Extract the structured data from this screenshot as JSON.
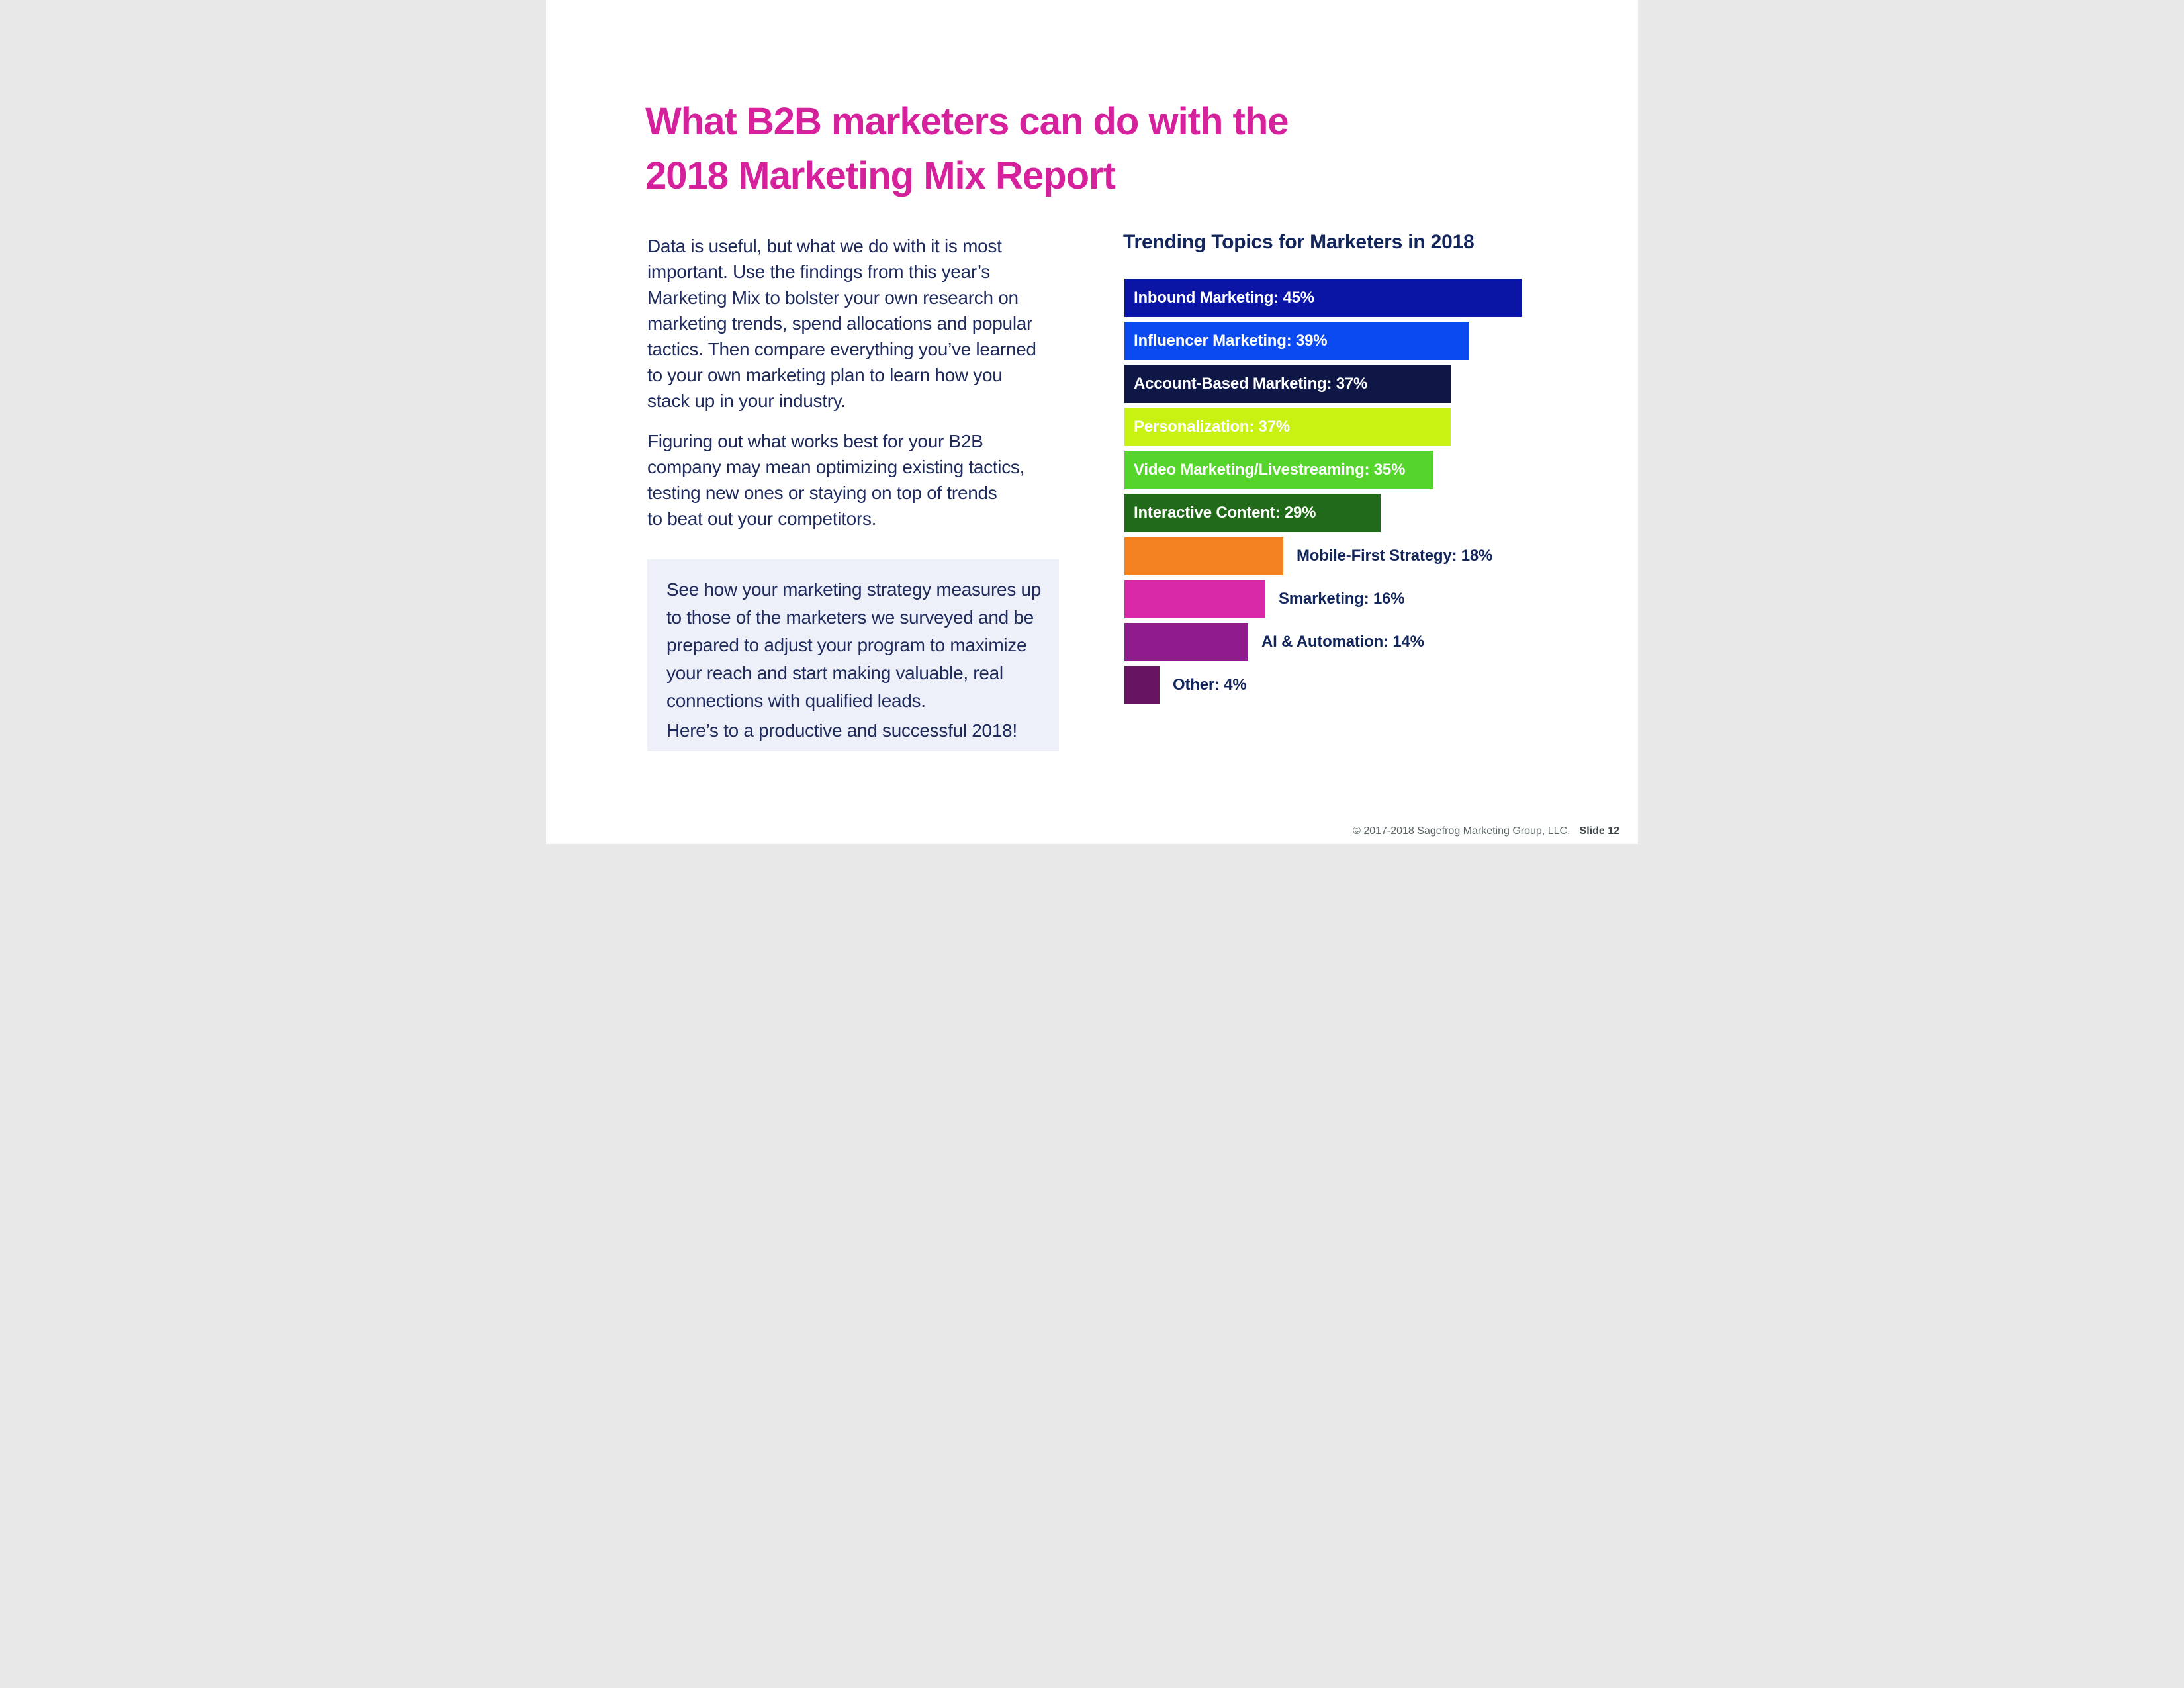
{
  "title": {
    "line1": "What B2B marketers can do with the",
    "line2": "2018 Marketing Mix Report",
    "color": "#d6219c"
  },
  "intro": {
    "paragraph1_lines": [
      "Data is useful, but what we do with it is most",
      "important. Use the findings from this year’s",
      "Marketing Mix to bolster your own research on",
      "marketing trends, spend allocations and popular",
      "tactics. Then compare everything you’ve learned",
      "to your own marketing plan to learn how you",
      "stack up in your industry."
    ],
    "paragraph2_lines": [
      "Figuring out what works best for your B2B",
      "company may mean optimizing existing tactics,",
      "testing new ones or staying on top of trends",
      "to beat out your competitors."
    ],
    "text_color": "#1f2b5c"
  },
  "callout": {
    "background": "#edf0f9",
    "body_lines": [
      "See how your marketing strategy measures up",
      "to those of the marketers we surveyed and be",
      "prepared to adjust your program to maximize",
      "your reach and start making valuable, real",
      "connections with qualified leads."
    ],
    "closing_line": "Here’s to a productive and successful 2018!"
  },
  "chart_data": {
    "type": "bar",
    "orientation": "horizontal",
    "title": "Trending Topics for Marketers in 2018",
    "title_color": "#13265b",
    "categories": [
      "Inbound Marketing",
      "Influencer Marketing",
      "Account-Based Marketing",
      "Personalization",
      "Video Marketing/Livestreaming",
      "Interactive Content",
      "Mobile-First Strategy",
      "Smarketing",
      "AI & Automation",
      "Other"
    ],
    "values": [
      45,
      39,
      37,
      37,
      35,
      29,
      18,
      16,
      14,
      4
    ],
    "bar_labels": [
      "Inbound Marketing: 45%",
      "Influencer Marketing: 39%",
      "Account-Based Marketing: 37%",
      "Personalization: 37%",
      "Video Marketing/Livestreaming: 35%",
      "Interactive Content: 29%",
      "Mobile-First Strategy: 18%",
      "Smarketing: 16%",
      "AI & Automation: 14%",
      "Other: 4%"
    ],
    "bar_colors": [
      "#0a15a6",
      "#0b4af0",
      "#0e1745",
      "#c8f211",
      "#55d42c",
      "#216a19",
      "#f58220",
      "#d929a8",
      "#8f1b8d",
      "#671562"
    ],
    "label_positions": [
      "inside",
      "inside",
      "inside",
      "inside",
      "inside",
      "inside",
      "outside",
      "outside",
      "outside",
      "outside"
    ],
    "inside_label_color": "#ffffff",
    "outside_label_color": "#13265b",
    "xlim": [
      0,
      46
    ],
    "grid": false,
    "legend": false
  },
  "footer": {
    "copyright": "© 2017-2018 Sagefrog Marketing Group, LLC.",
    "slide_label": "Slide 12"
  }
}
